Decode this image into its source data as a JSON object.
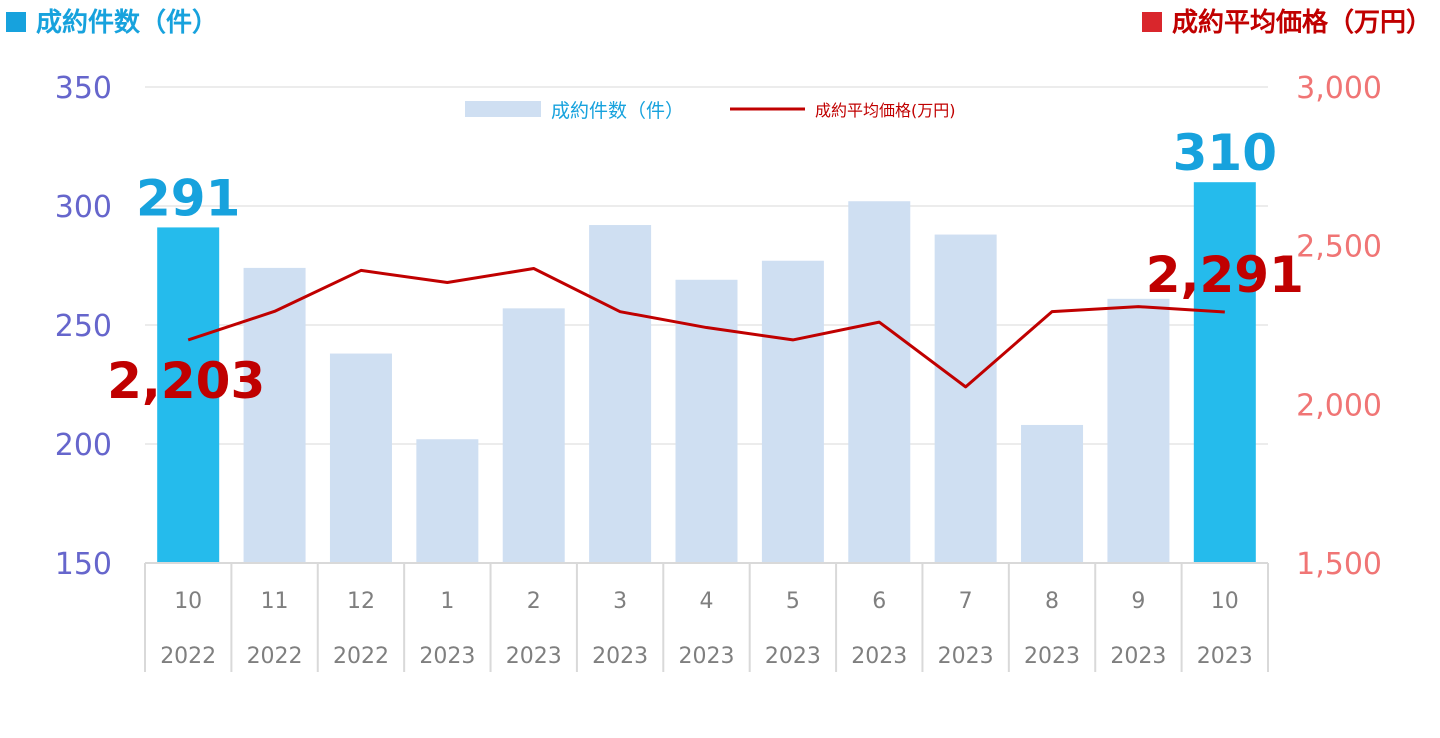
{
  "titles": {
    "left": "成約件数（件）",
    "right": "成約平均価格（万円）"
  },
  "colors": {
    "bar_normal": "#cfdff2",
    "bar_highlight": "#25bbec",
    "line": "#c00000",
    "left_axis_text": "#6666cc",
    "right_axis_text": "#f07575",
    "bar_label": "#17a2dd",
    "line_label": "#c00000",
    "grid": "#d9d9d9",
    "category_text": "#7f7f7f"
  },
  "chart_data": {
    "type": "bar",
    "categories": [
      [
        "10",
        "2022"
      ],
      [
        "11",
        "2022"
      ],
      [
        "12",
        "2022"
      ],
      [
        "1",
        "2023"
      ],
      [
        "2",
        "2023"
      ],
      [
        "3",
        "2023"
      ],
      [
        "4",
        "2023"
      ],
      [
        "5",
        "2023"
      ],
      [
        "6",
        "2023"
      ],
      [
        "7",
        "2023"
      ],
      [
        "8",
        "2023"
      ],
      [
        "9",
        "2023"
      ],
      [
        "10",
        "2023"
      ]
    ],
    "series": [
      {
        "name": "成約件数（件）",
        "type": "bar",
        "axis": "left",
        "values": [
          291,
          274,
          238,
          202,
          257,
          292,
          269,
          277,
          302,
          288,
          208,
          261,
          310
        ],
        "highlight_indices": [
          0,
          12
        ]
      },
      {
        "name": "成約平均価格(万円)",
        "type": "line",
        "axis": "right",
        "values": [
          2203,
          2293,
          2422,
          2384,
          2428,
          2292,
          2242,
          2203,
          2259,
          2055,
          2292,
          2308,
          2291
        ]
      }
    ],
    "left_axis": {
      "range": [
        150,
        350
      ],
      "ticks": [
        "150",
        "200",
        "250",
        "300",
        "350"
      ]
    },
    "right_axis": {
      "range": [
        1500,
        3000
      ],
      "ticks": [
        "1,500",
        "2,000",
        "2,500",
        "3,000"
      ]
    },
    "data_labels": [
      {
        "series": 0,
        "index": 0,
        "text": "291"
      },
      {
        "series": 0,
        "index": 12,
        "text": "310"
      },
      {
        "series": 1,
        "index": 0,
        "text": "2,203"
      },
      {
        "series": 1,
        "index": 12,
        "text": "2,291"
      }
    ],
    "legend": {
      "position": "top",
      "items": [
        "成約件数（件）",
        "成約平均価格(万円)"
      ]
    },
    "grid": true
  }
}
